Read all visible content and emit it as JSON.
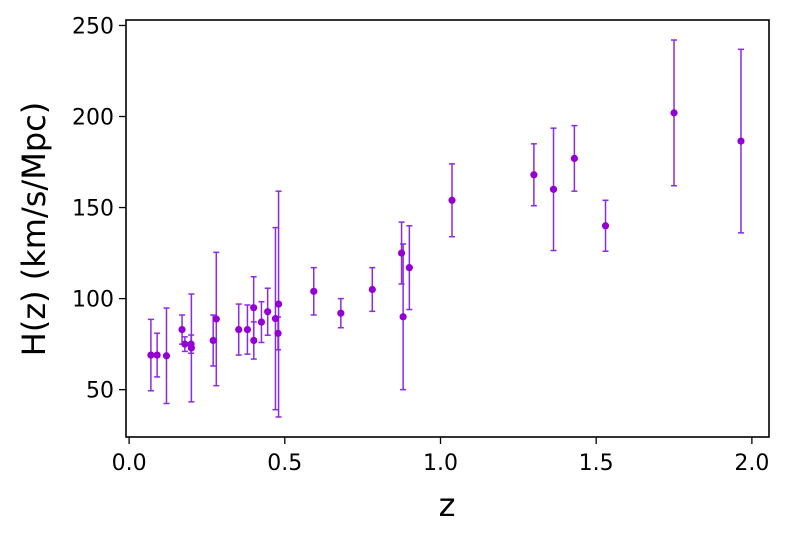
{
  "chart_data": {
    "type": "scatter",
    "title": "",
    "xlabel": "z",
    "ylabel": "H(z) (km/s/Mpc)",
    "xlim": [
      -0.01,
      2.055
    ],
    "ylim": [
      24,
      253
    ],
    "xticks": [
      0.0,
      0.5,
      1.0,
      1.5,
      2.0
    ],
    "xtick_labels": [
      "0.0",
      "0.5",
      "1.0",
      "1.5",
      "2.0"
    ],
    "yticks": [
      50,
      100,
      150,
      200,
      250
    ],
    "ytick_labels": [
      "50",
      "100",
      "150",
      "200",
      "250"
    ],
    "grid": false,
    "legend": "none",
    "color": "#9400d3",
    "errorbar_color": "#8a2be2",
    "series": [
      {
        "points": [
          {
            "x": 0.07,
            "y": 69,
            "err": 19.6
          },
          {
            "x": 0.09,
            "y": 69,
            "err": 12
          },
          {
            "x": 0.12,
            "y": 68.6,
            "err": 26.2
          },
          {
            "x": 0.17,
            "y": 83,
            "err": 8
          },
          {
            "x": 0.179,
            "y": 75,
            "err": 4
          },
          {
            "x": 0.199,
            "y": 75,
            "err": 5
          },
          {
            "x": 0.2,
            "y": 72.9,
            "err": 29.6
          },
          {
            "x": 0.27,
            "y": 77,
            "err": 14
          },
          {
            "x": 0.28,
            "y": 88.8,
            "err": 36.6
          },
          {
            "x": 0.352,
            "y": 83,
            "err": 14
          },
          {
            "x": 0.38,
            "y": 83,
            "err": 13.5
          },
          {
            "x": 0.4,
            "y": 95,
            "err": 17
          },
          {
            "x": 0.4004,
            "y": 77,
            "err": 10.2
          },
          {
            "x": 0.425,
            "y": 87.1,
            "err": 11.2
          },
          {
            "x": 0.445,
            "y": 92.8,
            "err": 12.9
          },
          {
            "x": 0.47,
            "y": 89,
            "err": 50
          },
          {
            "x": 0.4783,
            "y": 80.9,
            "err": 9
          },
          {
            "x": 0.48,
            "y": 97,
            "err": 62
          },
          {
            "x": 0.593,
            "y": 104,
            "err": 13
          },
          {
            "x": 0.68,
            "y": 92,
            "err": 8
          },
          {
            "x": 0.781,
            "y": 105,
            "err": 12
          },
          {
            "x": 0.875,
            "y": 125,
            "err": 17
          },
          {
            "x": 0.88,
            "y": 90,
            "err": 40
          },
          {
            "x": 0.9,
            "y": 117,
            "err": 23
          },
          {
            "x": 1.037,
            "y": 154,
            "err": 20
          },
          {
            "x": 1.3,
            "y": 168,
            "err": 17
          },
          {
            "x": 1.363,
            "y": 160,
            "err": 33.6
          },
          {
            "x": 1.43,
            "y": 177,
            "err": 18
          },
          {
            "x": 1.53,
            "y": 140,
            "err": 14
          },
          {
            "x": 1.75,
            "y": 202,
            "err": 40
          },
          {
            "x": 1.965,
            "y": 186.5,
            "err": 50.4
          }
        ]
      }
    ]
  }
}
